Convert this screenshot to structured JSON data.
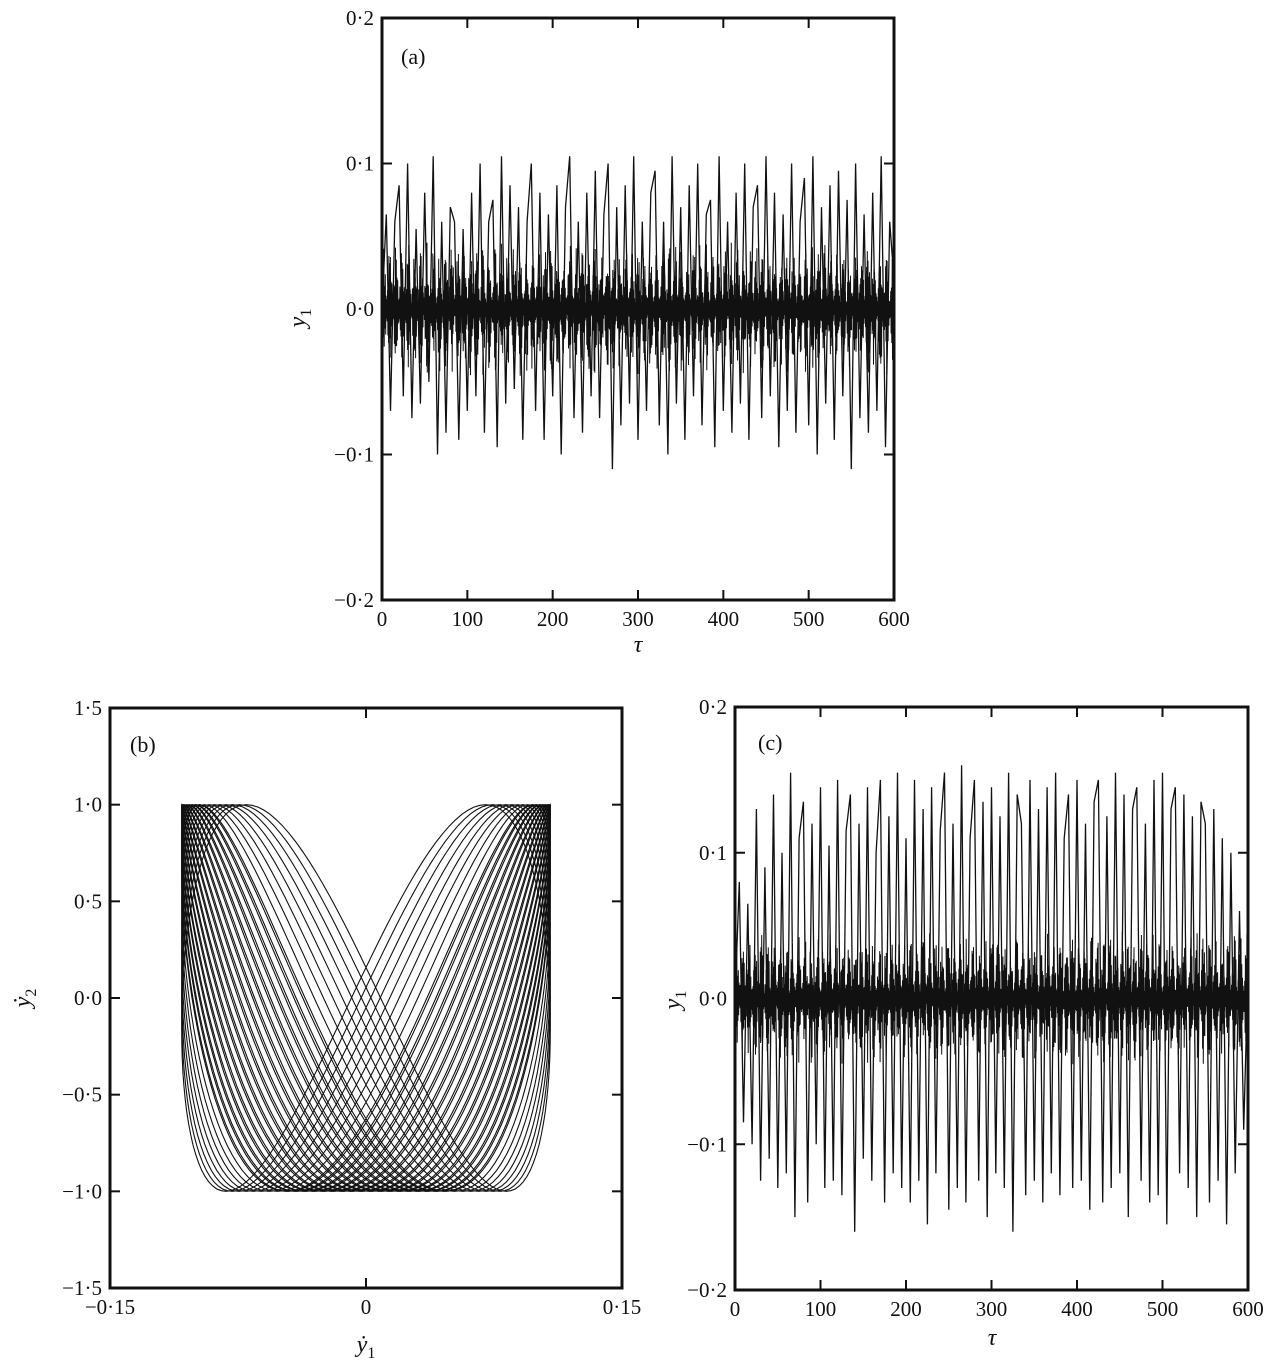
{
  "figure": {
    "background": "#ffffff",
    "ink": "#111111"
  },
  "chart_data": [
    {
      "panel": "a",
      "type": "line",
      "panel_label": "(a)",
      "title": "",
      "xlabel": "τ",
      "ylabel": "y1",
      "ylabel_base": "y",
      "ylabel_sub": "1",
      "xlim": [
        0,
        600
      ],
      "ylim": [
        -0.2,
        0.2
      ],
      "xticks": [
        0,
        100,
        200,
        300,
        400,
        500,
        600
      ],
      "yticks": [
        0.2,
        0.1,
        0.0,
        -0.1,
        -0.2
      ],
      "xtick_labels": [
        "0",
        "100",
        "200",
        "300",
        "400",
        "500",
        "600"
      ],
      "ytick_labels": [
        "0·2",
        "0·1",
        "0·0",
        "−0·1",
        "−0·2"
      ],
      "grid": false,
      "legend": "none",
      "series": [
        {
          "style": "dense oscillatory time series (sampled)",
          "x": [
            0,
            5,
            10,
            15,
            20,
            25,
            30,
            35,
            40,
            45,
            50,
            55,
            60,
            65,
            70,
            75,
            80,
            85,
            90,
            95,
            100,
            105,
            110,
            115,
            120,
            125,
            130,
            135,
            140,
            145,
            150,
            155,
            160,
            165,
            170,
            175,
            180,
            185,
            190,
            195,
            200,
            205,
            210,
            215,
            220,
            225,
            230,
            235,
            240,
            245,
            250,
            255,
            260,
            265,
            270,
            275,
            280,
            285,
            290,
            295,
            300,
            305,
            310,
            315,
            320,
            325,
            330,
            335,
            340,
            345,
            350,
            355,
            360,
            365,
            370,
            375,
            380,
            385,
            390,
            395,
            400,
            405,
            410,
            415,
            420,
            425,
            430,
            435,
            440,
            445,
            450,
            455,
            460,
            465,
            470,
            475,
            480,
            485,
            490,
            495,
            500,
            505,
            510,
            515,
            520,
            525,
            530,
            535,
            540,
            545,
            550,
            555,
            560,
            565,
            570,
            575,
            580,
            585,
            590,
            595,
            600
          ],
          "y": [
            0.0,
            0.065,
            -0.07,
            0.06,
            0.085,
            -0.06,
            0.1,
            -0.075,
            0.055,
            -0.065,
            0.08,
            -0.05,
            0.105,
            -0.1,
            0.06,
            -0.085,
            0.07,
            0.06,
            -0.09,
            0.055,
            -0.07,
            0.08,
            -0.06,
            0.1,
            -0.085,
            0.06,
            0.075,
            -0.095,
            0.105,
            -0.065,
            0.085,
            -0.055,
            0.07,
            -0.09,
            0.06,
            0.1,
            -0.07,
            0.08,
            -0.09,
            0.065,
            -0.06,
            0.085,
            -0.1,
            0.07,
            0.105,
            -0.075,
            0.06,
            -0.085,
            0.08,
            -0.06,
            0.095,
            -0.075,
            0.065,
            0.1,
            -0.11,
            0.07,
            -0.08,
            0.085,
            -0.065,
            0.105,
            -0.09,
            0.06,
            -0.07,
            0.08,
            0.095,
            -0.08,
            0.06,
            -0.1,
            0.105,
            -0.065,
            0.07,
            -0.09,
            0.085,
            -0.06,
            0.1,
            -0.08,
            0.065,
            0.075,
            -0.095,
            0.105,
            -0.07,
            0.06,
            -0.085,
            0.08,
            -0.065,
            0.1,
            -0.09,
            0.07,
            0.085,
            -0.075,
            0.105,
            -0.06,
            0.08,
            -0.095,
            0.065,
            -0.07,
            0.1,
            -0.085,
            0.06,
            0.09,
            -0.08,
            0.105,
            -0.1,
            0.07,
            -0.065,
            0.085,
            -0.09,
            0.095,
            -0.06,
            0.075,
            -0.11,
            0.1,
            -0.075,
            0.065,
            -0.085,
            0.08,
            -0.07,
            0.105,
            -0.095,
            0.06,
            0.02
          ]
        }
      ]
    },
    {
      "panel": "b",
      "type": "line",
      "panel_label": "(b)",
      "title": "",
      "xlabel": "ẏ1",
      "xlabel_base": "ẏ",
      "xlabel_sub": "1",
      "ylabel": "ẏ2",
      "ylabel_base": "ẏ",
      "ylabel_sub": "2",
      "xlim": [
        -0.15,
        0.15
      ],
      "ylim": [
        -1.5,
        1.5
      ],
      "xticks": [
        -0.15,
        0,
        0.15
      ],
      "yticks": [
        1.5,
        1.0,
        0.5,
        0.0,
        -0.5,
        -1.0,
        -1.5
      ],
      "xtick_labels": [
        "−0·15",
        "0",
        "0·15"
      ],
      "ytick_labels": [
        "1·5",
        "1·0",
        "0·5",
        "0·0",
        "−0·5",
        "−1·0",
        "−1·5"
      ],
      "grid": false,
      "legend": "none",
      "series": [
        {
          "style": "quasi-periodic phase-plane trajectory (Lissajous-like band)",
          "note_form": "ẏ1 ≈ 0.108·sin(t + φ), ẏ2 ≈ sin(2t), φ drifting over the run",
          "x_amplitude": 0.108,
          "y_amplitude": 1.0,
          "frequency_ratio": "1:2",
          "trajectory_count": 26
        }
      ]
    },
    {
      "panel": "c",
      "type": "line",
      "panel_label": "(c)",
      "title": "",
      "xlabel": "τ",
      "ylabel": "y1",
      "ylabel_base": "y",
      "ylabel_sub": "1",
      "xlim": [
        0,
        600
      ],
      "ylim": [
        -0.2,
        0.2
      ],
      "xticks": [
        0,
        100,
        200,
        300,
        400,
        500,
        600
      ],
      "yticks": [
        0.2,
        0.1,
        0.0,
        -0.1,
        -0.2
      ],
      "xtick_labels": [
        "0",
        "100",
        "200",
        "300",
        "400",
        "500",
        "600"
      ],
      "ytick_labels": [
        "0·2",
        "0·1",
        "0·0",
        "−0·1",
        "−0·2"
      ],
      "grid": false,
      "legend": "none",
      "series": [
        {
          "style": "dense oscillatory time series (sampled)",
          "x": [
            0,
            5,
            10,
            15,
            20,
            25,
            30,
            35,
            40,
            45,
            50,
            55,
            60,
            65,
            70,
            75,
            80,
            85,
            90,
            95,
            100,
            105,
            110,
            115,
            120,
            125,
            130,
            135,
            140,
            145,
            150,
            155,
            160,
            165,
            170,
            175,
            180,
            185,
            190,
            195,
            200,
            205,
            210,
            215,
            220,
            225,
            230,
            235,
            240,
            245,
            250,
            255,
            260,
            265,
            270,
            275,
            280,
            285,
            290,
            295,
            300,
            305,
            310,
            315,
            320,
            325,
            330,
            335,
            340,
            345,
            350,
            355,
            360,
            365,
            370,
            375,
            380,
            385,
            390,
            395,
            400,
            405,
            410,
            415,
            420,
            425,
            430,
            435,
            440,
            445,
            450,
            455,
            460,
            465,
            470,
            475,
            480,
            485,
            490,
            495,
            500,
            505,
            510,
            515,
            520,
            525,
            530,
            535,
            540,
            545,
            550,
            555,
            560,
            565,
            570,
            575,
            580,
            585,
            590,
            595,
            600
          ],
          "y": [
            0.0,
            0.08,
            -0.085,
            0.065,
            -0.1,
            0.13,
            -0.125,
            0.09,
            -0.11,
            0.14,
            -0.13,
            0.1,
            -0.12,
            0.155,
            -0.15,
            0.11,
            0.135,
            -0.14,
            0.12,
            -0.1,
            0.145,
            -0.13,
            0.105,
            -0.125,
            0.15,
            -0.135,
            0.115,
            0.14,
            -0.16,
            0.12,
            -0.11,
            0.145,
            -0.125,
            0.1,
            0.15,
            -0.14,
            0.125,
            -0.12,
            0.155,
            -0.13,
            0.11,
            -0.14,
            0.15,
            -0.125,
            0.13,
            -0.155,
            0.145,
            -0.12,
            0.115,
            0.155,
            -0.145,
            0.12,
            -0.13,
            0.16,
            -0.14,
            0.11,
            0.15,
            -0.125,
            0.135,
            -0.15,
            0.145,
            -0.12,
            0.125,
            -0.13,
            0.155,
            -0.16,
            0.14,
            0.12,
            -0.135,
            0.15,
            -0.125,
            0.13,
            -0.14,
            0.145,
            -0.12,
            0.155,
            -0.135,
            0.11,
            0.14,
            -0.13,
            0.15,
            -0.125,
            0.12,
            -0.145,
            0.135,
            0.15,
            -0.14,
            0.125,
            -0.13,
            0.155,
            -0.12,
            0.14,
            -0.15,
            0.13,
            0.145,
            -0.125,
            0.12,
            -0.14,
            0.15,
            -0.135,
            0.155,
            -0.155,
            0.13,
            0.145,
            -0.12,
            0.14,
            -0.13,
            0.125,
            -0.15,
            0.135,
            0.12,
            -0.14,
            0.13,
            -0.125,
            0.11,
            -0.155,
            0.1,
            -0.12,
            0.06,
            -0.09,
            0.02
          ]
        }
      ]
    }
  ]
}
